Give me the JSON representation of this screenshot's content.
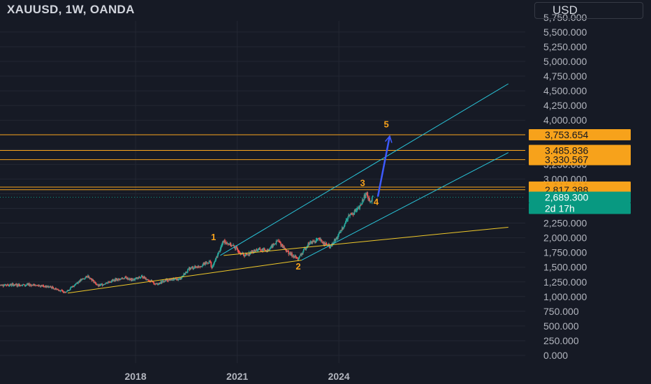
{
  "header": {
    "title": "XAUUSD, 1W, OANDA",
    "currency": "USD"
  },
  "colors": {
    "background": "#161a25",
    "grid": "#232733",
    "up_candle": "#26a69a",
    "down_candle": "#ef5350",
    "level_line": "#f7a21b",
    "channel_line": "#29c5d9",
    "support_line": "#f0c929",
    "arrow": "#3d5afe",
    "price_tag": "#089981"
  },
  "chart_data": {
    "type": "candlestick",
    "symbol": "XAUUSD",
    "timeframe": "1W",
    "y_ticks": [
      0,
      250,
      500,
      750,
      1000,
      1250,
      1500,
      1750,
      2000,
      2250,
      2500,
      2750,
      3000,
      3250,
      3500,
      3750,
      4000,
      4250,
      4500,
      4750,
      5000,
      5250,
      5500,
      5750
    ],
    "y_tick_labels": [
      "0.000",
      "250.000",
      "500.000",
      "750.000",
      "1,000.000",
      "1,250.000",
      "1,500.000",
      "1,750.000",
      "2,000.000",
      "2,250.000",
      "2,500.000",
      "2,750.000",
      "3,000.000",
      "3,250.000",
      "3,500.000",
      "3,750.000",
      "4,000.000",
      "4,250.000",
      "4,500.000",
      "4,750.000",
      "5,000.000",
      "5,250.000",
      "5,500.000",
      "5,750.000"
    ],
    "x_ticks": [
      2018,
      2021,
      2024
    ],
    "x_tick_labels": [
      "2018",
      "2021",
      "2024"
    ],
    "ylim": [
      0,
      5750
    ],
    "xlim": [
      2014.0,
      2029.5
    ],
    "price_path": [
      [
        2015.0,
        1200
      ],
      [
        2015.5,
        1160
      ],
      [
        2015.9,
        1080
      ],
      [
        2016.0,
        1100
      ],
      [
        2016.3,
        1250
      ],
      [
        2016.6,
        1350
      ],
      [
        2016.9,
        1180
      ],
      [
        2017.3,
        1270
      ],
      [
        2017.7,
        1320
      ],
      [
        2017.9,
        1280
      ],
      [
        2018.2,
        1340
      ],
      [
        2018.6,
        1210
      ],
      [
        2018.9,
        1280
      ],
      [
        2019.3,
        1300
      ],
      [
        2019.6,
        1480
      ],
      [
        2019.9,
        1520
      ],
      [
        2020.2,
        1600
      ],
      [
        2020.25,
        1480
      ],
      [
        2020.6,
        1950
      ],
      [
        2020.9,
        1850
      ],
      [
        2021.2,
        1700
      ],
      [
        2021.6,
        1800
      ],
      [
        2021.9,
        1790
      ],
      [
        2022.2,
        1950
      ],
      [
        2022.5,
        1750
      ],
      [
        2022.8,
        1640
      ],
      [
        2023.1,
        1900
      ],
      [
        2023.4,
        1970
      ],
      [
        2023.75,
        1840
      ],
      [
        2024.0,
        2050
      ],
      [
        2024.3,
        2380
      ],
      [
        2024.6,
        2500
      ],
      [
        2024.8,
        2760
      ],
      [
        2024.95,
        2610
      ],
      [
        2025.0,
        2689
      ]
    ],
    "levels": [
      3753.654,
      3485.836,
      3330.567,
      2861.602,
      2817.388
    ],
    "level_labels": [
      "3,753.654",
      "3,485.836",
      "3,330.567",
      "2,861.602",
      "2,817.388"
    ],
    "current_price": 2689.3,
    "current_price_label": "2,689.300",
    "countdown_label": "2d 17h",
    "trendlines": [
      {
        "name": "upper-channel",
        "from": [
          2020.5,
          1700
        ],
        "to": [
          2029.0,
          4620
        ]
      },
      {
        "name": "lower-channel",
        "from": [
          2022.9,
          1620
        ],
        "to": [
          2029.0,
          3450
        ]
      },
      {
        "name": "support-lower",
        "from": [
          2016.0,
          1060
        ],
        "to": [
          2022.9,
          1620
        ]
      },
      {
        "name": "support-upper",
        "from": [
          2020.6,
          1700
        ],
        "to": [
          2029.0,
          2180
        ]
      }
    ],
    "projection_arrow": {
      "from": [
        2025.15,
        2700
      ],
      "to": [
        2025.5,
        3730
      ]
    },
    "wave_labels": [
      {
        "text": "1",
        "x": 2020.3,
        "y": 1960
      },
      {
        "text": "2",
        "x": 2022.8,
        "y": 1460
      },
      {
        "text": "3",
        "x": 2024.7,
        "y": 2880
      },
      {
        "text": "4",
        "x": 2025.1,
        "y": 2560
      },
      {
        "text": "5",
        "x": 2025.4,
        "y": 3880
      }
    ]
  }
}
